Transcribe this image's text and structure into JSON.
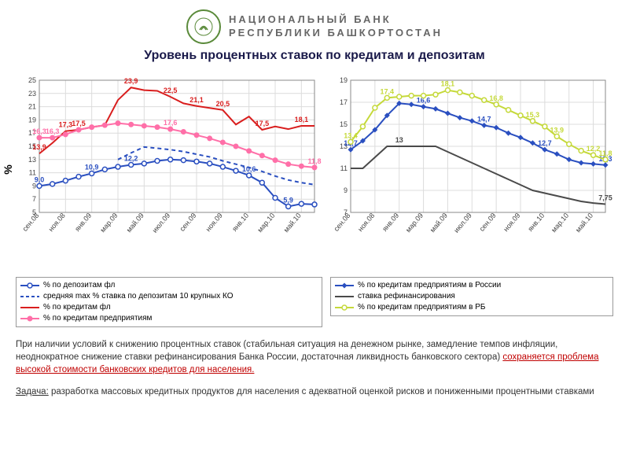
{
  "header": {
    "bank_line1": "НАЦИОНАЛЬНЫЙ БАНК",
    "bank_line2": "РЕСПУБЛИКИ БАШКОРТОСТАН",
    "logo_color": "#5a8a3a"
  },
  "title": "Уровень процентных ставок по кредитам и депозитам",
  "chart_left": {
    "type": "line",
    "y_axis_label": "%",
    "ylim": [
      5,
      25
    ],
    "ytick_step": 2,
    "xlabels": [
      "сен.08",
      "ноя.08",
      "янв.09",
      "мар.09",
      "май.09",
      "июл.09",
      "сен.09",
      "ноя.09",
      "янв.10",
      "мар.10",
      "май.10"
    ],
    "grid_color": "#dcdcdc",
    "axis_color": "#888888",
    "background_color": "#ffffff",
    "label_fontsize": 9,
    "series": [
      {
        "name": "% по депозитам фл",
        "color": "#2a4fc0",
        "marker": "circle-open",
        "line_width": 2,
        "values": [
          9.0,
          9.3,
          9.8,
          10.4,
          10.9,
          11.5,
          11.9,
          12.2,
          12.4,
          12.8,
          13.0,
          12.9,
          12.7,
          12.4,
          11.9,
          11.3,
          10.6,
          9.5,
          7.2,
          5.9,
          6.3,
          6.2
        ],
        "show_labels": {
          "0": "9,0",
          "4": "10,9",
          "7": "12,2",
          "16": "10,6",
          "19": "5,9"
        }
      },
      {
        "name": "средняя max % ставка по депозитам 10 крупных КО",
        "color": "#2a4fc0",
        "dash": "5,4",
        "line_width": 2,
        "values": [
          null,
          null,
          null,
          null,
          null,
          null,
          13.0,
          14.0,
          14.9,
          14.7,
          14.5,
          14.2,
          13.8,
          13.4,
          12.8,
          12.3,
          11.8,
          11.2,
          10.5,
          9.9,
          9.5,
          9.2
        ]
      },
      {
        "name": "% по кредитам фл",
        "color": "#d91e1e",
        "line_width": 2,
        "values": [
          13.9,
          15.5,
          17.3,
          17.5,
          17.9,
          18.2,
          22.0,
          23.9,
          23.5,
          23.4,
          22.5,
          21.5,
          21.1,
          20.8,
          20.5,
          18.3,
          19.5,
          17.5,
          18.0,
          17.6,
          18.1,
          18.1
        ],
        "show_labels": {
          "0": "13,9",
          "2": "17,3",
          "3": "17,5",
          "7": "23,9",
          "10": "22,5",
          "12": "21,1",
          "14": "20,5",
          "17": "17,5",
          "20": "18,1"
        }
      },
      {
        "name": "% по кредитам предприятиям",
        "color": "#ff6fa8",
        "marker": "circle-filled",
        "line_width": 2,
        "values": [
          16.3,
          16.3,
          16.8,
          17.5,
          17.9,
          18.2,
          18.5,
          18.3,
          18.1,
          17.9,
          17.6,
          17.2,
          16.7,
          16.2,
          15.6,
          15.0,
          14.3,
          13.6,
          12.9,
          12.3,
          12.0,
          11.8
        ],
        "show_labels": {
          "0": "16,3",
          "1": "16,3",
          "10": "17,6",
          "21": "11,8"
        }
      }
    ],
    "legend": [
      {
        "swatch_type": "line-open-circle",
        "color": "#2a4fc0",
        "label": "% по депозитам фл"
      },
      {
        "swatch_type": "dash",
        "color": "#2a4fc0",
        "label": "средняя max % ставка по депозитам 10 крупных КО"
      },
      {
        "swatch_type": "line",
        "color": "#d91e1e",
        "label": "% по кредитам фл"
      },
      {
        "swatch_type": "line-filled-circle",
        "color": "#ff6fa8",
        "label": "% по кредитам предприятиям"
      }
    ]
  },
  "chart_right": {
    "type": "line",
    "ylim": [
      7,
      19
    ],
    "ytick_step": 2,
    "xlabels": [
      "сен.08",
      "ноя.08",
      "янв.09",
      "мар.09",
      "май.09",
      "июл.09",
      "сен.09",
      "ноя.09",
      "янв.10",
      "мар.10",
      "май.10"
    ],
    "grid_color": "#dcdcdc",
    "axis_color": "#888888",
    "background_color": "#ffffff",
    "label_fontsize": 9,
    "series": [
      {
        "name": "% по кредитам предприятиям в России",
        "color": "#2a4fc0",
        "marker": "diamond-filled",
        "line_width": 2,
        "values": [
          12.7,
          13.5,
          14.5,
          15.8,
          16.9,
          16.8,
          16.6,
          16.4,
          16.0,
          15.6,
          15.3,
          14.9,
          14.7,
          14.2,
          13.8,
          13.3,
          12.7,
          12.3,
          11.8,
          11.5,
          11.4,
          11.3
        ],
        "show_labels": {
          "0": "12,7",
          "6": "16,6",
          "11": "14,7",
          "16": "12,7",
          "21": "11,3"
        }
      },
      {
        "name": "ставка рефинансирования",
        "color": "#4a4a4a",
        "line_width": 2,
        "values": [
          11.0,
          11.0,
          12.0,
          13.0,
          13.0,
          13.0,
          13.0,
          13.0,
          12.5,
          12.0,
          11.5,
          11.0,
          10.5,
          10.0,
          9.5,
          9.0,
          8.75,
          8.5,
          8.25,
          8.0,
          7.85,
          7.75
        ],
        "show_labels": {
          "4": "13",
          "21": "7,75"
        }
      },
      {
        "name": "% по кредитам предприятиям в РБ",
        "color": "#c5d93a",
        "marker": "circle-open",
        "line_width": 2,
        "values": [
          13.4,
          14.8,
          16.5,
          17.4,
          17.5,
          17.6,
          17.6,
          17.7,
          18.1,
          17.9,
          17.6,
          17.2,
          16.8,
          16.3,
          15.8,
          15.3,
          14.8,
          13.9,
          13.2,
          12.6,
          12.2,
          11.8
        ],
        "show_labels": {
          "0": "13,4",
          "3": "17,4",
          "8": "18,1",
          "12": "16,8",
          "15": "15,3",
          "17": "13,9",
          "20": "12,2",
          "21": "11,8"
        }
      }
    ],
    "legend": [
      {
        "swatch_type": "line-diamond",
        "color": "#2a4fc0",
        "label": "% по кредитам предприятиям в России"
      },
      {
        "swatch_type": "line",
        "color": "#4a4a4a",
        "label": "ставка рефинансирования"
      },
      {
        "swatch_type": "line-open-circle",
        "color": "#c5d93a",
        "label": "% по кредитам предприятиям в РБ"
      }
    ]
  },
  "body": {
    "p1_a": "При наличии условий к снижению процентных ставок (стабильная ситуация на денежном рынке, замедление темпов инфляции, неоднократное снижение ставки рефинансирования Банка России, достаточная ликвидность банковского сектора) ",
    "p1_highlight": "сохраняется проблема высокой стоимости банковских кредитов для населения.",
    "p2_task": "Задача:",
    "p2_rest": " разработка массовых кредитных продуктов для населения с адекватной оценкой рисков и пониженными процентными ставками"
  }
}
